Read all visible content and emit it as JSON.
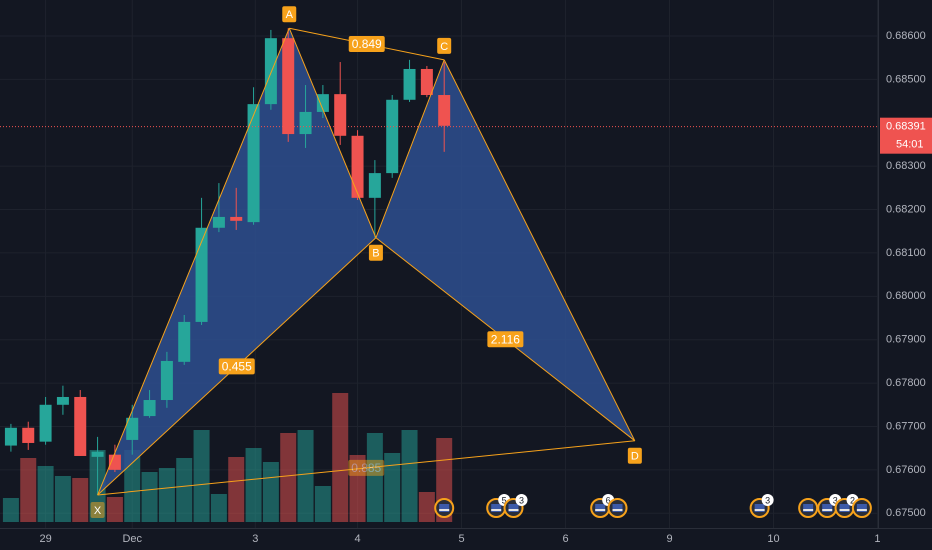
{
  "chart_data": {
    "type": "candlestick",
    "up_color": "#26a69a",
    "down_color": "#ef5350",
    "x": [
      0,
      1,
      2,
      3,
      4,
      5,
      6,
      7,
      8,
      9,
      10,
      11,
      12,
      13,
      14,
      15,
      16,
      17,
      18,
      19,
      20,
      21,
      22,
      23,
      24,
      25
    ],
    "open": [
      0.67656,
      0.67697,
      0.67665,
      0.6775,
      0.67768,
      0.6763,
      0.67635,
      0.67669,
      0.67724,
      0.67761,
      0.67849,
      0.67941,
      0.68158,
      0.68183,
      0.68171,
      0.68443,
      0.68595,
      0.68374,
      0.68425,
      0.68466,
      0.6837,
      0.68227,
      0.68284,
      0.68453,
      0.68524,
      0.68464
    ],
    "high": [
      0.67706,
      0.67711,
      0.67768,
      0.67794,
      0.67784,
      0.67676,
      0.67658,
      0.6775,
      0.67784,
      0.67872,
      0.67957,
      0.68227,
      0.68261,
      0.6825,
      0.68482,
      0.68614,
      0.68618,
      0.68487,
      0.68487,
      0.6854,
      0.68383,
      0.68314,
      0.68464,
      0.68545,
      0.68531,
      0.6854
    ],
    "low": [
      0.67642,
      0.67646,
      0.67658,
      0.67727,
      0.67632,
      0.67542,
      0.67595,
      0.67635,
      0.6772,
      0.67743,
      0.67842,
      0.67934,
      0.68148,
      0.68153,
      0.68165,
      0.6843,
      0.68356,
      0.68342,
      0.68411,
      0.68349,
      0.68222,
      0.68135,
      0.68273,
      0.68448,
      0.68459,
      0.68333
    ],
    "close": [
      0.67697,
      0.67662,
      0.6775,
      0.67768,
      0.67632,
      0.67642,
      0.676,
      0.6772,
      0.67761,
      0.67851,
      0.67941,
      0.68158,
      0.68183,
      0.68174,
      0.68443,
      0.68595,
      0.68374,
      0.68425,
      0.68466,
      0.6837,
      0.68227,
      0.68284,
      0.68453,
      0.68524,
      0.68464,
      0.68393
    ],
    "volume": [
      24,
      64,
      56,
      46,
      44,
      72,
      25,
      72,
      50,
      54,
      64,
      92,
      28,
      65,
      74,
      60,
      89,
      92,
      36,
      129,
      67,
      89,
      69,
      92,
      30,
      84
    ],
    "vlim": [
      0,
      522
    ],
    "xlim": [
      -0.63,
      50.03
    ],
    "ylim": [
      0.67466,
      0.68683
    ],
    "yticks": [
      {
        "value": 0.686,
        "label": "0.68600"
      },
      {
        "value": 0.685,
        "label": "0.68500"
      },
      {
        "value": 0.683,
        "label": "0.68300"
      },
      {
        "value": 0.682,
        "label": "0.68200"
      },
      {
        "value": 0.681,
        "label": "0.68100"
      },
      {
        "value": 0.68,
        "label": "0.68000"
      },
      {
        "value": 0.679,
        "label": "0.67900"
      },
      {
        "value": 0.678,
        "label": "0.67800"
      },
      {
        "value": 0.677,
        "label": "0.67700"
      },
      {
        "value": 0.676,
        "label": "0.67600"
      },
      {
        "value": 0.675,
        "label": "0.67500"
      }
    ],
    "xticks": [
      {
        "value": 2,
        "label": "29"
      },
      {
        "value": 7,
        "label": "Dec"
      },
      {
        "value": 14.1,
        "label": "3"
      },
      {
        "value": 20,
        "label": "4"
      },
      {
        "value": 26,
        "label": "5"
      },
      {
        "value": 32,
        "label": "6"
      },
      {
        "value": 38,
        "label": "9"
      },
      {
        "value": 44,
        "label": "10"
      },
      {
        "value": 50,
        "label": "1"
      }
    ],
    "last_price": 0.68391,
    "countdown": "54:01",
    "pattern": {
      "color": "#f7a21b",
      "fill": "#2e4f8f",
      "points": [
        {
          "label": "X",
          "x": 5,
          "y": 0.67542
        },
        {
          "label": "A",
          "x": 16.06,
          "y": 0.68618
        },
        {
          "label": "B",
          "x": 21.06,
          "y": 0.68135
        },
        {
          "label": "C",
          "x": 25,
          "y": 0.68545
        },
        {
          "label": "D",
          "x": 36,
          "y": 0.67667
        }
      ],
      "ratios": [
        0.849,
        0.455,
        2.116,
        0.885
      ]
    },
    "events": [
      {
        "x": 25
      },
      {
        "x": 28,
        "badge": "5"
      },
      {
        "x": 29,
        "badge": "3"
      },
      {
        "x": 34,
        "badge": "6"
      },
      {
        "x": 35
      },
      {
        "x": 43.2,
        "badge": "3"
      },
      {
        "x": 46
      },
      {
        "x": 47.1,
        "badge": "3"
      },
      {
        "x": 48.1,
        "badge": "2"
      },
      {
        "x": 49.1
      }
    ]
  }
}
